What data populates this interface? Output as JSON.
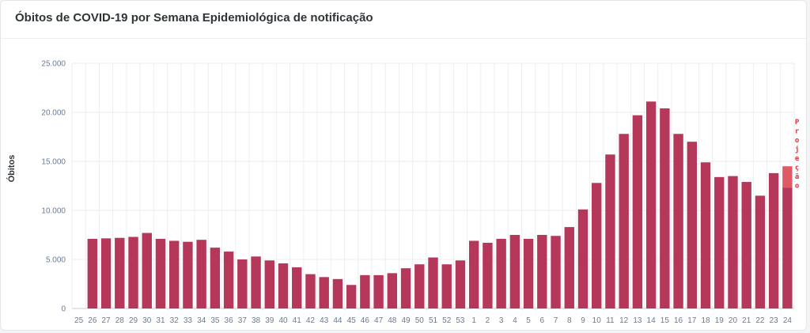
{
  "card": {
    "title": "Óbitos de COVID-19 por Semana Epidemiológica de notificação"
  },
  "colors": {
    "bar": "#b5385a",
    "projection_bar": "#e05a66",
    "projection_text": "#e0323c",
    "grid": "#eceef1",
    "axis": "#c9ced6"
  },
  "chart_data": {
    "type": "bar",
    "ylabel": "Óbitos",
    "ylim": [
      0,
      25000
    ],
    "y_ticks": [
      "0",
      "5.000",
      "10.000",
      "15.000",
      "20.000",
      "25.000"
    ],
    "y_tick_values": [
      0,
      5000,
      10000,
      15000,
      20000,
      25000
    ],
    "grid": true,
    "categories": [
      "25",
      "26",
      "27",
      "28",
      "29",
      "30",
      "31",
      "32",
      "33",
      "34",
      "35",
      "36",
      "37",
      "38",
      "39",
      "40",
      "41",
      "42",
      "43",
      "44",
      "45",
      "46",
      "47",
      "48",
      "49",
      "50",
      "51",
      "52",
      "53",
      "1",
      "2",
      "3",
      "4",
      "5",
      "6",
      "7",
      "8",
      "9",
      "10",
      "11",
      "12",
      "13",
      "14",
      "15",
      "16",
      "17",
      "18",
      "19",
      "20",
      "21",
      "22",
      "23",
      "24"
    ],
    "values": [
      0,
      7100,
      7150,
      7200,
      7300,
      7700,
      7100,
      6900,
      6800,
      7000,
      6200,
      5800,
      5000,
      5300,
      4900,
      4600,
      4200,
      3500,
      3200,
      3000,
      2400,
      3400,
      3400,
      3600,
      4100,
      4500,
      5200,
      4500,
      4900,
      6900,
      6700,
      7100,
      7500,
      7100,
      7500,
      7400,
      8300,
      10100,
      12800,
      15700,
      17800,
      19700,
      21100,
      20400,
      17800,
      17000,
      14900,
      13400,
      13500,
      12900,
      11500,
      13800,
      12300
    ],
    "projection": {
      "category": "24",
      "value": 14500,
      "label": "Projeção"
    }
  }
}
